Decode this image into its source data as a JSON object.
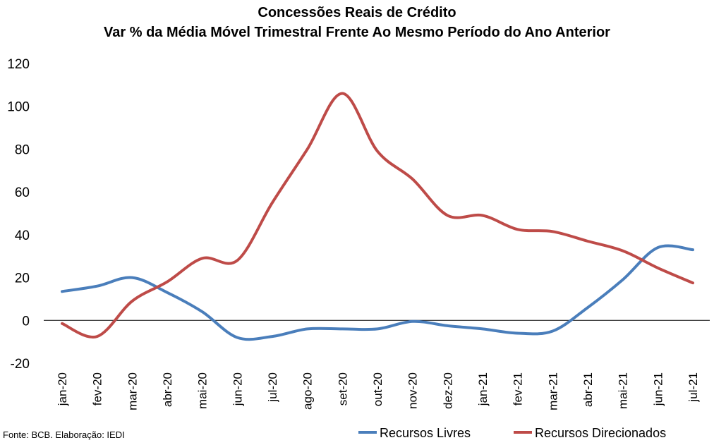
{
  "chart_data": {
    "type": "line",
    "title": "Concessões Reais de Crédito",
    "subtitle": "Var % da Média Móvel Trimestral Frente Ao Mesmo Período do Ano Anterior",
    "categories": [
      "jan-20",
      "fev-20",
      "mar-20",
      "abr-20",
      "mai-20",
      "jun-20",
      "jul-20",
      "ago-20",
      "set-20",
      "out-20",
      "nov-20",
      "dez-20",
      "jan-21",
      "fev-21",
      "mar-21",
      "abr-21",
      "mai-21",
      "jun-21",
      "jul-21"
    ],
    "series": [
      {
        "name": "Recursos Livres",
        "color": "#4a7ebb",
        "values": [
          13.5,
          16,
          20,
          13,
          4,
          -8,
          -7.5,
          -4,
          -4,
          -4,
          -0.5,
          -2.5,
          -4,
          -6,
          -5,
          6,
          19,
          34,
          33
        ]
      },
      {
        "name": "Recursos Direcionados",
        "color": "#be4b48",
        "values": [
          -1.5,
          -7.5,
          9,
          18,
          29,
          28,
          55,
          80,
          106,
          79,
          66,
          49,
          49,
          42.5,
          41.5,
          37,
          32.5,
          24.5,
          17.5
        ]
      }
    ],
    "ylim": [
      -20,
      120
    ],
    "yticks": [
      -20,
      0,
      20,
      40,
      60,
      80,
      100,
      120
    ],
    "legend": "bottom"
  },
  "source": "Fonte: BCB. Elaboração: IEDI"
}
